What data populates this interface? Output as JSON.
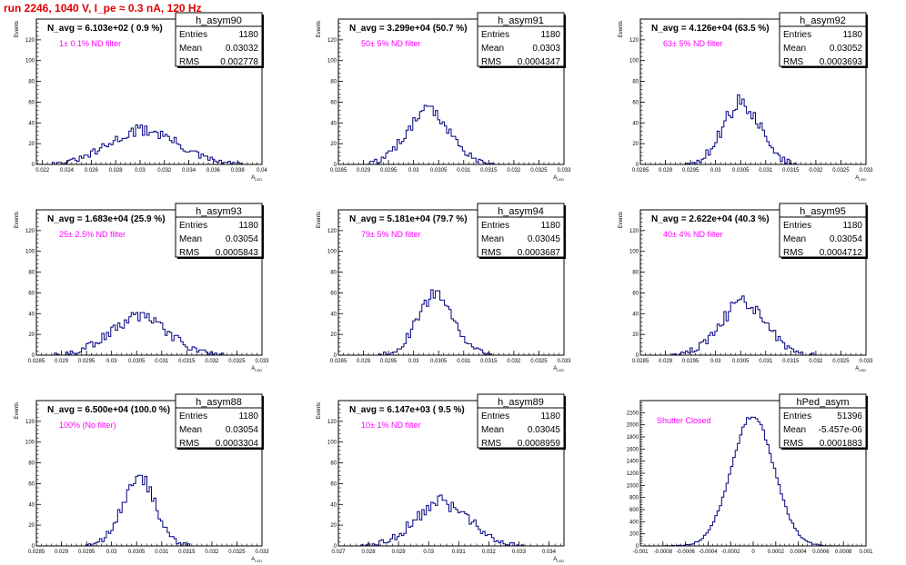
{
  "page_title": "run 2246,  1040 V, I_pe ≈ 0.3 nA, 120 Hz",
  "colors": {
    "hist_line": "#000080",
    "title_text": "#e00000",
    "filter_text": "#ff00ff"
  },
  "stat_labels": {
    "entries": "Entries",
    "mean": "Mean",
    "rms": "RMS"
  },
  "chart_data": [
    {
      "type": "histogram",
      "name": "h_asym90",
      "navg": "N_avg = 6.103e+02 ( 0.9 %)",
      "filter": "1± 0.1% ND filter",
      "entries": "1180",
      "mean": "0.03032",
      "rms": "0.002778",
      "ylabel": "Events",
      "xlabel": "A",
      "xlabel_sub": "LED",
      "xlim": [
        0.0215,
        0.04
      ],
      "ylim": [
        0,
        140
      ],
      "xticks": [
        0.022,
        0.024,
        0.026,
        0.028,
        0.03,
        0.032,
        0.034,
        0.036,
        0.038,
        0.04
      ],
      "xtick_labels": [
        "0.022",
        "0.024",
        "0.026",
        "0.028",
        "0.03",
        "0.032",
        "0.034",
        "0.036",
        "0.038",
        "0.04"
      ],
      "yticks": [
        0,
        20,
        40,
        60,
        80,
        100,
        120
      ],
      "ytick_labels": [
        "0",
        "20",
        "40",
        "60",
        "80",
        "100",
        "120"
      ],
      "mu": 0.03032,
      "sigma": 0.002778,
      "peak": 33,
      "noise": 6
    },
    {
      "type": "histogram",
      "name": "h_asym91",
      "navg": "N_avg = 3.299e+04 (50.7 %)",
      "filter": "50± 5% ND filter",
      "entries": "1180",
      "mean": "0.0303",
      "rms": "0.0004347",
      "ylabel": "Events",
      "xlabel": "A",
      "xlabel_sub": "LED",
      "xlim": [
        0.0285,
        0.033
      ],
      "ylim": [
        0,
        140
      ],
      "xticks": [
        0.0285,
        0.029,
        0.0295,
        0.03,
        0.0305,
        0.031,
        0.0315,
        0.032,
        0.0325,
        0.033
      ],
      "xtick_labels": [
        "0.0285",
        "0.029",
        "0.0295",
        "0.03",
        "0.0305",
        "0.031",
        "0.0315",
        "0.032",
        "0.0325",
        "0.033"
      ],
      "yticks": [
        0,
        20,
        40,
        60,
        80,
        100,
        120
      ],
      "ytick_labels": [
        "0",
        "20",
        "40",
        "60",
        "80",
        "100",
        "120"
      ],
      "mu": 0.0303,
      "sigma": 0.0004347,
      "peak": 52,
      "noise": 7
    },
    {
      "type": "histogram",
      "name": "h_asym92",
      "navg": "N_avg = 4.126e+04 (63.5 %)",
      "filter": "63± 5% ND filter",
      "entries": "1180",
      "mean": "0.03052",
      "rms": "0.0003693",
      "ylabel": "Events",
      "xlabel": "A",
      "xlabel_sub": "LED",
      "xlim": [
        0.0285,
        0.033
      ],
      "ylim": [
        0,
        140
      ],
      "xticks": [
        0.0285,
        0.029,
        0.0295,
        0.03,
        0.0305,
        0.031,
        0.0315,
        0.032,
        0.0325,
        0.033
      ],
      "xtick_labels": [
        "0.0285",
        "0.029",
        "0.0295",
        "0.03",
        "0.0305",
        "0.031",
        "0.0315",
        "0.032",
        "0.0325",
        "0.033"
      ],
      "yticks": [
        0,
        20,
        40,
        60,
        80,
        100,
        120
      ],
      "ytick_labels": [
        "0",
        "20",
        "40",
        "60",
        "80",
        "100",
        "120"
      ],
      "mu": 0.03052,
      "sigma": 0.0003693,
      "peak": 60,
      "noise": 8
    },
    {
      "type": "histogram",
      "name": "h_asym93",
      "navg": "N_avg = 1.683e+04 (25.9 %)",
      "filter": "25± 2.5% ND filter",
      "entries": "1180",
      "mean": "0.03054",
      "rms": "0.0005843",
      "ylabel": "Events",
      "xlabel": "A",
      "xlabel_sub": "LED",
      "xlim": [
        0.0285,
        0.033
      ],
      "ylim": [
        0,
        140
      ],
      "xticks": [
        0.0285,
        0.029,
        0.0295,
        0.03,
        0.0305,
        0.031,
        0.0315,
        0.032,
        0.0325,
        0.033
      ],
      "xtick_labels": [
        "0.0285",
        "0.029",
        "0.0295",
        "0.03",
        "0.0305",
        "0.031",
        "0.0315",
        "0.032",
        "0.0325",
        "0.033"
      ],
      "yticks": [
        0,
        20,
        40,
        60,
        80,
        100,
        120
      ],
      "ytick_labels": [
        "0",
        "20",
        "40",
        "60",
        "80",
        "100",
        "120"
      ],
      "mu": 0.03054,
      "sigma": 0.0005843,
      "peak": 36,
      "noise": 6
    },
    {
      "type": "histogram",
      "name": "h_asym94",
      "navg": "N_avg = 5.181e+04 (79.7 %)",
      "filter": "79± 5% ND filter",
      "entries": "1180",
      "mean": "0.03045",
      "rms": "0.0003687",
      "ylabel": "Events",
      "xlabel": "A",
      "xlabel_sub": "LED",
      "xlim": [
        0.0285,
        0.033
      ],
      "ylim": [
        0,
        140
      ],
      "xticks": [
        0.0285,
        0.029,
        0.0295,
        0.03,
        0.0305,
        0.031,
        0.0315,
        0.032,
        0.0325,
        0.033
      ],
      "xtick_labels": [
        "0.0285",
        "0.029",
        "0.0295",
        "0.03",
        "0.0305",
        "0.031",
        "0.0315",
        "0.032",
        "0.0325",
        "0.033"
      ],
      "yticks": [
        0,
        20,
        40,
        60,
        80,
        100,
        120
      ],
      "ytick_labels": [
        "0",
        "20",
        "40",
        "60",
        "80",
        "100",
        "120"
      ],
      "mu": 0.03045,
      "sigma": 0.0003687,
      "peak": 58,
      "noise": 7
    },
    {
      "type": "histogram",
      "name": "h_asym95",
      "navg": "N_avg = 2.622e+04 (40.3 %)",
      "filter": "40± 4% ND filter",
      "entries": "1180",
      "mean": "0.03054",
      "rms": "0.0004712",
      "ylabel": "Events",
      "xlabel": "A",
      "xlabel_sub": "LED",
      "xlim": [
        0.0285,
        0.033
      ],
      "ylim": [
        0,
        140
      ],
      "xticks": [
        0.0285,
        0.029,
        0.0295,
        0.03,
        0.0305,
        0.031,
        0.0315,
        0.032,
        0.0325,
        0.033
      ],
      "xtick_labels": [
        "0.0285",
        "0.029",
        "0.0295",
        "0.03",
        "0.0305",
        "0.031",
        "0.0315",
        "0.032",
        "0.0325",
        "0.033"
      ],
      "yticks": [
        0,
        20,
        40,
        60,
        80,
        100,
        120
      ],
      "ytick_labels": [
        "0",
        "20",
        "40",
        "60",
        "80",
        "100",
        "120"
      ],
      "mu": 0.03054,
      "sigma": 0.0004712,
      "peak": 50,
      "noise": 8
    },
    {
      "type": "histogram",
      "name": "h_asym88",
      "navg": "N_avg = 6.500e+04 (100.0 %)",
      "filter": "100% (No filter)",
      "entries": "1180",
      "mean": "0.03054",
      "rms": "0.0003304",
      "ylabel": "Events",
      "xlabel": "A",
      "xlabel_sub": "LED",
      "xlim": [
        0.0285,
        0.033
      ],
      "ylim": [
        0,
        140
      ],
      "xticks": [
        0.0285,
        0.029,
        0.0295,
        0.03,
        0.0305,
        0.031,
        0.0315,
        0.032,
        0.0325,
        0.033
      ],
      "xtick_labels": [
        "0.0285",
        "0.029",
        "0.0295",
        "0.03",
        "0.0305",
        "0.031",
        "0.0315",
        "0.032",
        "0.0325",
        "0.033"
      ],
      "yticks": [
        0,
        20,
        40,
        60,
        80,
        100,
        120
      ],
      "ytick_labels": [
        "0",
        "20",
        "40",
        "60",
        "80",
        "100",
        "120"
      ],
      "mu": 0.03054,
      "sigma": 0.0003304,
      "peak": 66,
      "noise": 7
    },
    {
      "type": "histogram",
      "name": "h_asym89",
      "navg": "N_avg = 6.147e+03 ( 9.5 %)",
      "filter": "10± 1% ND filter",
      "entries": "1180",
      "mean": "0.03045",
      "rms": "0.0008959",
      "ylabel": "Events",
      "xlabel": "A",
      "xlabel_sub": "LED",
      "xlim": [
        0.027,
        0.0345
      ],
      "ylim": [
        0,
        140
      ],
      "xticks": [
        0.027,
        0.028,
        0.029,
        0.03,
        0.031,
        0.032,
        0.033,
        0.034
      ],
      "xtick_labels": [
        "0.027",
        "0.028",
        "0.029",
        "0.03",
        "0.031",
        "0.032",
        "0.033",
        "0.034"
      ],
      "yticks": [
        0,
        20,
        40,
        60,
        80,
        100,
        120
      ],
      "ytick_labels": [
        "0",
        "20",
        "40",
        "60",
        "80",
        "100",
        "120"
      ],
      "mu": 0.03045,
      "sigma": 0.0008959,
      "peak": 42,
      "noise": 7
    },
    {
      "type": "histogram",
      "name": "hPed_asym",
      "navg": "",
      "filter": "Shutter Closed",
      "entries": "51396",
      "mean": "-5.457e-06",
      "rms": "0.0001883",
      "ylabel": "",
      "xlabel": "",
      "xlabel_sub": "",
      "xlim": [
        -0.001,
        0.001
      ],
      "ylim": [
        0,
        2400
      ],
      "xticks": [
        -0.001,
        -0.0008,
        -0.0006,
        -0.0004,
        -0.0002,
        0,
        0.0002,
        0.0004,
        0.0006,
        0.0008,
        0.001
      ],
      "xtick_labels": [
        "-0.001",
        "-0.0008",
        "-0.0006",
        "-0.0004",
        "-0.0002",
        "0",
        "0.0002",
        "0.0004",
        "0.0006",
        "0.0008",
        "0.001"
      ],
      "yticks": [
        0,
        200,
        400,
        600,
        800,
        1000,
        1200,
        1400,
        1600,
        1800,
        2000,
        2200
      ],
      "ytick_labels": [
        "0",
        "200",
        "400",
        "600",
        "800",
        "1000",
        "1200",
        "1400",
        "1600",
        "1800",
        "2000",
        "2200"
      ],
      "mu": -5.457e-06,
      "sigma": 0.0001883,
      "peak": 2150,
      "noise": 40
    }
  ]
}
